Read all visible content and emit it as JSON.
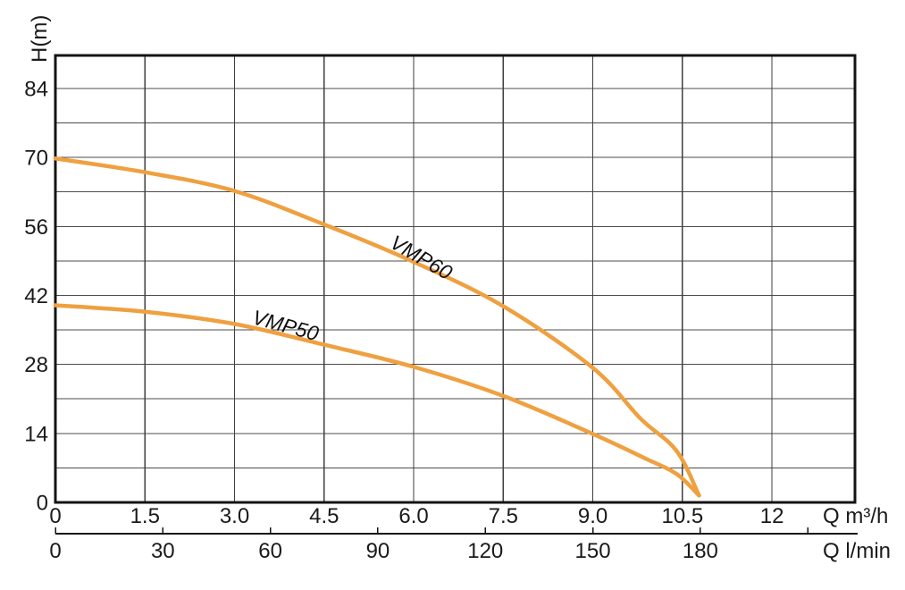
{
  "chart_data": {
    "type": "line",
    "title": "",
    "ylabel": "H(m)",
    "grid": true,
    "legend_position": "none",
    "y_axis": {
      "min": 0,
      "max": 90.7,
      "minor_step": 7,
      "major_step": 14,
      "tick_values": [
        0,
        14,
        28,
        42,
        56,
        70,
        84
      ],
      "tick_labels": [
        "0",
        "14",
        "28",
        "42",
        "56",
        "70",
        "84"
      ]
    },
    "x_axis_primary": {
      "unit": "Q m³/h",
      "min": 0,
      "max": 13.39,
      "grid_step": 1.5,
      "grid_max": 12,
      "tick_values": [
        0,
        1.5,
        3.0,
        4.5,
        6.0,
        7.5,
        9.0,
        10.5,
        12
      ],
      "tick_labels": [
        "0",
        "1.5",
        "3.0",
        "4.5",
        "6.0",
        "7.5",
        "9.0",
        "10.5",
        "12"
      ]
    },
    "x_axis_secondary": {
      "unit": "Q l/min",
      "per_primary": 16.667,
      "tick_values": [
        0,
        30,
        60,
        90,
        120,
        150,
        180,
        210
      ],
      "tick_labels": [
        "0",
        "30",
        "60",
        "90",
        "120",
        "150",
        "180",
        ""
      ]
    },
    "series": [
      {
        "name": "VMP60",
        "color": "#EFA040",
        "points": [
          [
            0,
            69.8
          ],
          [
            1.5,
            67.0
          ],
          [
            3.0,
            63.2
          ],
          [
            4.5,
            56.4
          ],
          [
            6.0,
            48.8
          ],
          [
            7.5,
            39.8
          ],
          [
            9.0,
            27.3
          ],
          [
            9.8,
            17.0
          ],
          [
            10.4,
            10.5
          ],
          [
            10.78,
            1.4
          ]
        ],
        "label": {
          "text": "VMP60",
          "x": 5.58,
          "y": 51.9,
          "angle": 30
        }
      },
      {
        "name": "VMP50",
        "color": "#EFA040",
        "points": [
          [
            0,
            40.0
          ],
          [
            1.5,
            38.7
          ],
          [
            3.0,
            36.2
          ],
          [
            4.5,
            32.0
          ],
          [
            6.0,
            27.5
          ],
          [
            7.5,
            21.6
          ],
          [
            9.0,
            13.9
          ],
          [
            9.9,
            8.8
          ],
          [
            10.4,
            5.8
          ],
          [
            10.78,
            1.4
          ]
        ],
        "label": {
          "text": "VMP50",
          "x": 3.28,
          "y": 36.3,
          "angle": 15
        }
      }
    ]
  },
  "style": {
    "curve_color": "#EFA040",
    "grid_color": "#4d4d4d",
    "axis_color": "#141414",
    "text_color": "#1a1a1a",
    "background": "#ffffff"
  }
}
